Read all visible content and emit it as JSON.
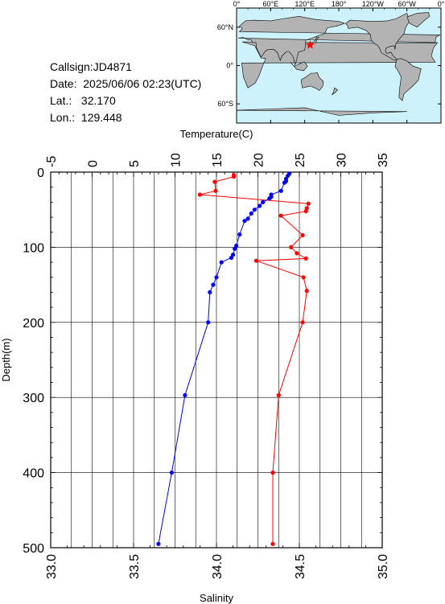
{
  "header": {
    "callsign_label": "Callsign:",
    "callsign": "JD4871",
    "date_label": "Date:",
    "date": "2025/06/06 02:23(UTC)",
    "lat_label": "Lat.:",
    "lat": "32.170",
    "lon_label": "Lon.:",
    "lon": "129.448"
  },
  "map": {
    "top_labels": [
      "0°",
      "60°E",
      "120°E",
      "180°",
      "120°W",
      "60°W",
      "0°"
    ],
    "left_labels": [
      "60°N",
      "0°",
      "60°S"
    ],
    "ocean_color": "#cdf2fb",
    "land_color": "#b3b3b3",
    "marker_color": "#ff0000",
    "marker": {
      "lon": 129.448,
      "lat": 32.17
    }
  },
  "chart_data": {
    "type": "line",
    "ylabel": "Depth(m)",
    "ylim": [
      0,
      500
    ],
    "yticks": [
      0,
      100,
      200,
      300,
      400,
      500
    ],
    "temperature_axis": {
      "label": "Temperature(C)",
      "range": [
        -5,
        35
      ],
      "ticks": [
        -5,
        0,
        5,
        10,
        15,
        20,
        25,
        30,
        35
      ],
      "color": "#ff0000"
    },
    "salinity_axis": {
      "label": "Salinity",
      "range": [
        33.0,
        35.0
      ],
      "ticks": [
        "33.0",
        "33.5",
        "34.0",
        "34.5",
        "35.0"
      ],
      "color": "#0000ff"
    },
    "grid": true,
    "series": [
      {
        "axis": "temperature",
        "color": "#ff0000",
        "points": [
          [
            17.1,
            4
          ],
          [
            17.1,
            6
          ],
          [
            14.8,
            13
          ],
          [
            14.9,
            25
          ],
          [
            13.0,
            30
          ],
          [
            26.1,
            42
          ],
          [
            25.9,
            48
          ],
          [
            25.8,
            52
          ],
          [
            22.8,
            58
          ],
          [
            25.4,
            84
          ],
          [
            24.0,
            100
          ],
          [
            24.7,
            108
          ],
          [
            25.8,
            115
          ],
          [
            19.8,
            118
          ],
          [
            25.5,
            140
          ],
          [
            25.9,
            158
          ],
          [
            25.4,
            200
          ],
          [
            22.5,
            297
          ],
          [
            21.8,
            400
          ],
          [
            21.8,
            495
          ]
        ]
      },
      {
        "axis": "salinity",
        "color": "#0000ff",
        "points": [
          [
            34.44,
            2
          ],
          [
            34.43,
            5
          ],
          [
            34.42,
            9
          ],
          [
            34.42,
            12
          ],
          [
            34.41,
            14
          ],
          [
            34.39,
            25
          ],
          [
            34.33,
            30
          ],
          [
            34.33,
            33
          ],
          [
            34.32,
            35
          ],
          [
            34.28,
            40
          ],
          [
            34.26,
            45
          ],
          [
            34.23,
            50
          ],
          [
            34.21,
            55
          ],
          [
            34.19,
            62
          ],
          [
            34.17,
            65
          ],
          [
            34.14,
            83
          ],
          [
            34.12,
            98
          ],
          [
            34.11,
            102
          ],
          [
            34.1,
            110
          ],
          [
            34.09,
            114
          ],
          [
            34.03,
            120
          ],
          [
            34.0,
            140
          ],
          [
            33.98,
            150
          ],
          [
            33.96,
            160
          ],
          [
            33.95,
            200
          ],
          [
            33.81,
            297
          ],
          [
            33.73,
            400
          ],
          [
            33.65,
            495
          ]
        ]
      }
    ]
  }
}
